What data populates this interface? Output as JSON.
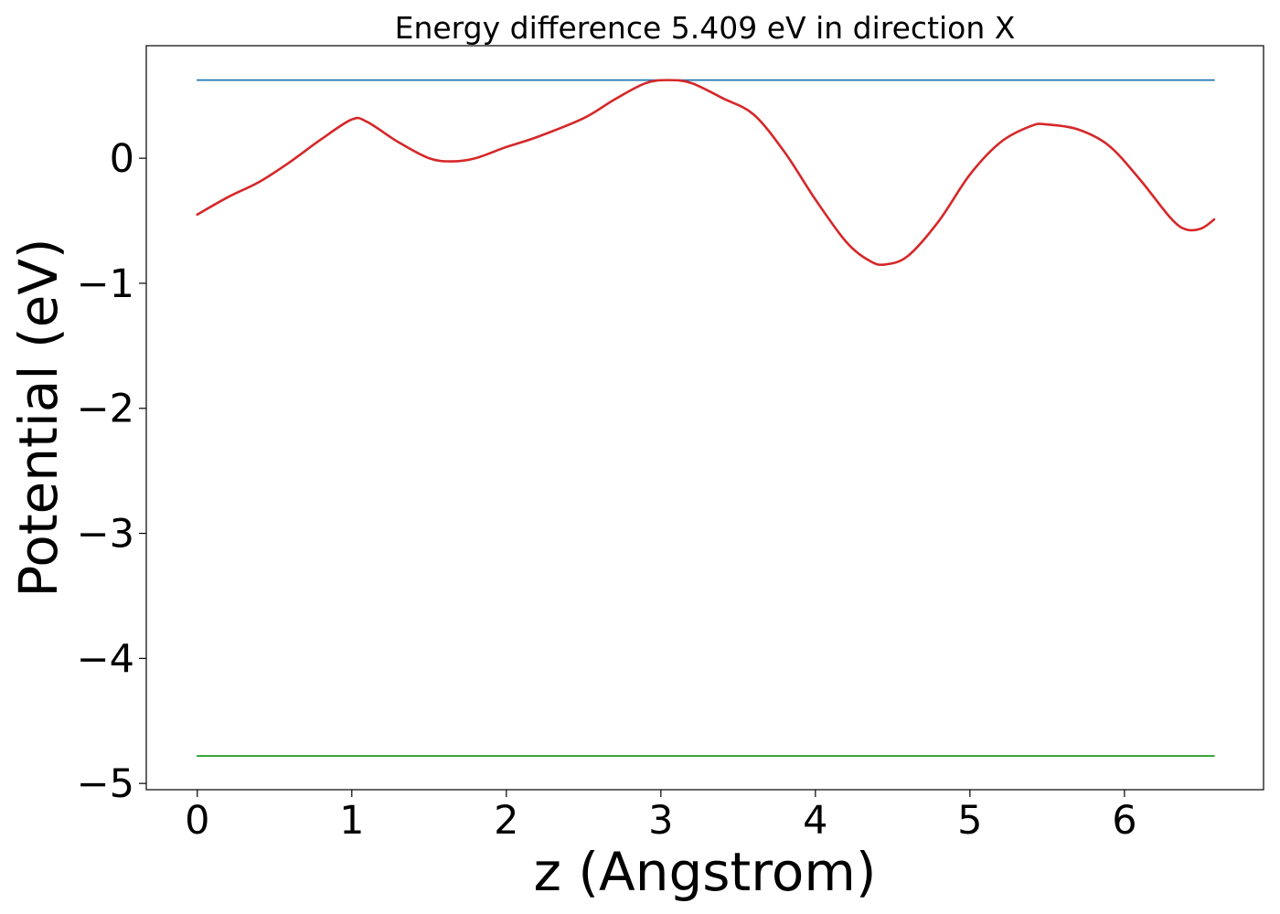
{
  "chart_data": {
    "type": "line",
    "title": "Energy difference 5.409 eV in direction X",
    "xlabel": "z (Angstrom)",
    "ylabel": "Potential (eV)",
    "xlim": [
      -0.33,
      6.9
    ],
    "ylim": [
      -5.05,
      0.9
    ],
    "xticks": [
      0,
      1,
      2,
      3,
      4,
      5,
      6
    ],
    "xtick_labels": [
      "0",
      "1",
      "2",
      "3",
      "4",
      "5",
      "6"
    ],
    "yticks": [
      0,
      -1,
      -2,
      -3,
      -4,
      -5
    ],
    "ytick_labels": [
      "0",
      "−1",
      "−2",
      "−3",
      "−4",
      "−5"
    ],
    "grid": false,
    "legend": false,
    "series": [
      {
        "color": "#1f77b4",
        "x": [
          0,
          6.58
        ],
        "y": [
          0.625,
          0.625
        ]
      },
      {
        "color": "#2ca02c",
        "x": [
          0,
          6.58
        ],
        "y": [
          -4.78,
          -4.78
        ]
      },
      {
        "color": "#d62728",
        "x": [
          0,
          0.2,
          0.4,
          0.6,
          0.8,
          1.0,
          1.1,
          1.3,
          1.5,
          1.65,
          1.8,
          2.0,
          2.2,
          2.5,
          2.7,
          2.9,
          3.05,
          3.2,
          3.4,
          3.6,
          3.8,
          4.0,
          4.2,
          4.35,
          4.45,
          4.6,
          4.8,
          5.0,
          5.2,
          5.4,
          5.5,
          5.7,
          5.9,
          6.1,
          6.3,
          6.4,
          6.5,
          6.58
        ],
        "y": [
          -0.45,
          -0.31,
          -0.19,
          -0.03,
          0.15,
          0.31,
          0.29,
          0.13,
          0.0,
          -0.025,
          0.0,
          0.09,
          0.17,
          0.32,
          0.47,
          0.6,
          0.625,
          0.6,
          0.48,
          0.35,
          0.05,
          -0.33,
          -0.67,
          -0.82,
          -0.85,
          -0.78,
          -0.5,
          -0.13,
          0.13,
          0.26,
          0.27,
          0.23,
          0.1,
          -0.17,
          -0.48,
          -0.57,
          -0.56,
          -0.49
        ]
      }
    ]
  }
}
